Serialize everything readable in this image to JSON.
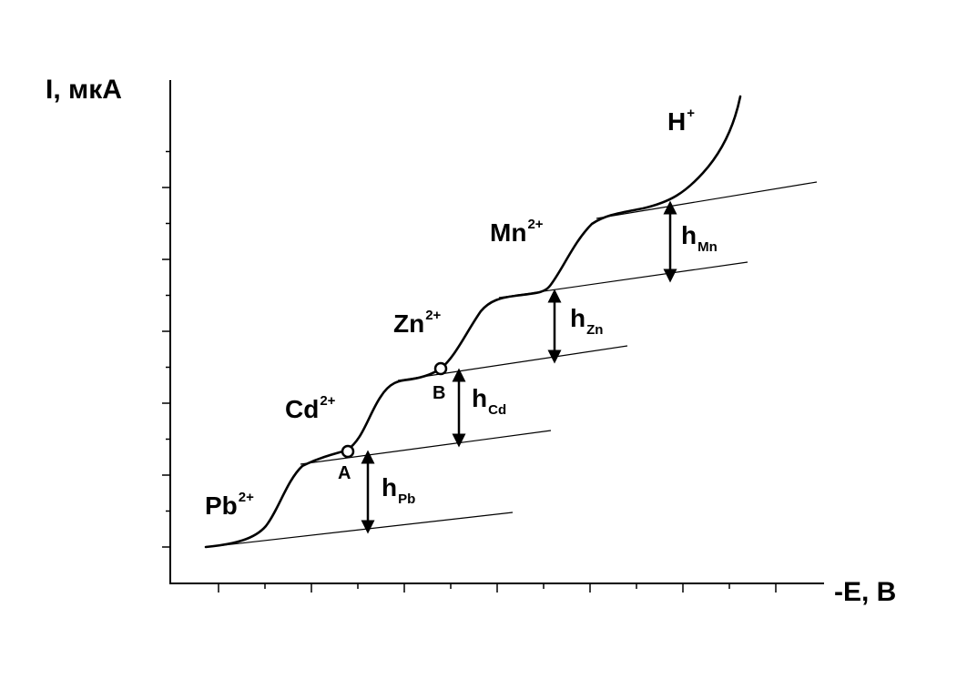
{
  "axes": {
    "ylabel": "I, мкА",
    "xlabel": "-E, B"
  },
  "waves": [
    {
      "ion": "Pb",
      "charge": "2+",
      "height_label": "h",
      "height_sub": "Pb"
    },
    {
      "ion": "Cd",
      "charge": "2+",
      "height_label": "h",
      "height_sub": "Cd"
    },
    {
      "ion": "Zn",
      "charge": "2+",
      "height_label": "h",
      "height_sub": "Zn"
    },
    {
      "ion": "Mn",
      "charge": "2+",
      "height_label": "h",
      "height_sub": "Mn"
    },
    {
      "ion": "H",
      "charge": "+"
    }
  ],
  "points": [
    {
      "label": "A"
    },
    {
      "label": "B"
    }
  ],
  "colors": {
    "ink": "#000000",
    "background": "#ffffff"
  }
}
